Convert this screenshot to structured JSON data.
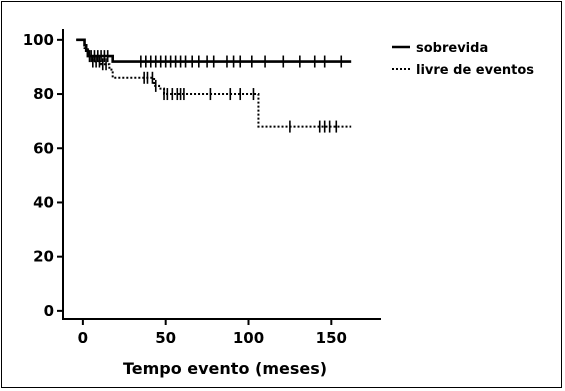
{
  "chart_data": {
    "type": "line",
    "title": "",
    "xlabel": "Tempo evento (meses)",
    "ylabel": "",
    "xlim": [
      -12,
      180
    ],
    "ylim": [
      -3,
      104
    ],
    "x_ticks": [
      "0",
      "50",
      "100",
      "150"
    ],
    "y_ticks": [
      "0",
      "20",
      "40",
      "60",
      "80",
      "100"
    ],
    "x_tick_values": [
      0,
      50,
      100,
      150
    ],
    "y_tick_values": [
      0,
      20,
      40,
      60,
      80,
      100
    ],
    "legend_position": "top-right",
    "grid": false,
    "series": [
      {
        "name": "sobrevida",
        "style": "solid",
        "color": "#000000",
        "steps": [
          [
            -4,
            100
          ],
          [
            0,
            100
          ],
          [
            1,
            98
          ],
          [
            2,
            96
          ],
          [
            3,
            94
          ],
          [
            16,
            94
          ],
          [
            18,
            92
          ],
          [
            162,
            92
          ]
        ],
        "censored": [
          5,
          7,
          9,
          11,
          13,
          15,
          35,
          38,
          41,
          44,
          47,
          50,
          53,
          56,
          59,
          62,
          66,
          70,
          75,
          79,
          87,
          91,
          95,
          102,
          110,
          121,
          131,
          140,
          146,
          156
        ]
      },
      {
        "name": "livre de eventos",
        "style": "dotted",
        "color": "#000000",
        "steps": [
          [
            -4,
            100
          ],
          [
            0,
            100
          ],
          [
            1,
            97
          ],
          [
            3,
            94
          ],
          [
            6,
            92
          ],
          [
            11,
            91
          ],
          [
            16,
            89
          ],
          [
            18,
            86
          ],
          [
            40,
            86
          ],
          [
            43,
            83
          ],
          [
            46,
            82
          ],
          [
            49,
            80
          ],
          [
            104,
            80
          ],
          [
            106,
            68
          ],
          [
            162,
            68
          ]
        ],
        "censored": [
          4,
          6,
          8,
          10,
          12,
          14,
          37,
          39,
          42,
          44,
          49,
          51,
          54,
          57,
          59,
          61,
          77,
          89,
          95,
          103,
          125,
          143,
          146,
          149,
          153
        ]
      }
    ]
  }
}
